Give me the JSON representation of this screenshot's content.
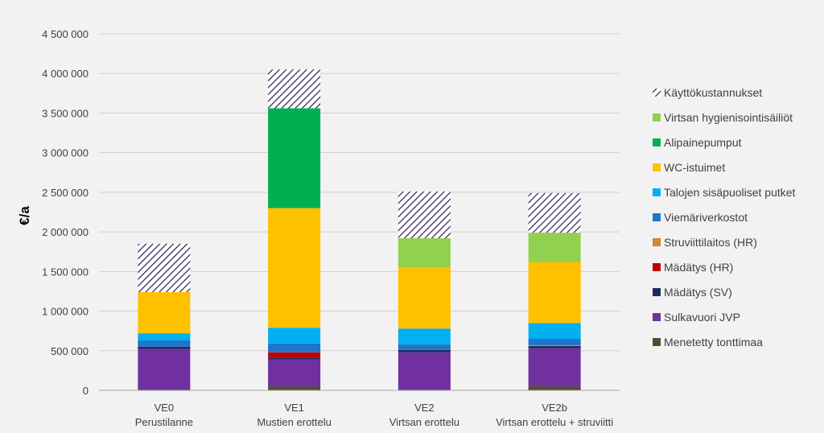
{
  "chart_data": {
    "type": "bar",
    "stacked": true,
    "title": "",
    "xlabel": "",
    "ylabel": "€/a",
    "ylim": [
      0,
      4500000
    ],
    "ytick_step": 500000,
    "ytick_labels": [
      "0",
      "500 000",
      "1 000 000",
      "1 500 000",
      "2 000 000",
      "2 500 000",
      "3 000 000",
      "3 500 000",
      "4 000 000",
      "4 500 000"
    ],
    "grid": true,
    "legend_position": "right",
    "categories": [
      {
        "code": "VE0",
        "desc": "Perustilanne"
      },
      {
        "code": "VE1",
        "desc": "Mustien erottelu"
      },
      {
        "code": "VE2",
        "desc": "Virtsan erottelu"
      },
      {
        "code": "VE2b",
        "desc": "Virtsan erottelu + struviitti"
      }
    ],
    "series": [
      {
        "name": "Menetetty tonttimaa",
        "color": "#4f4f2f",
        "values": [
          0,
          50000,
          0,
          50000
        ]
      },
      {
        "name": "Sulkavuori JVP",
        "color": "#7030a0",
        "values": [
          520000,
          340000,
          480000,
          480000
        ]
      },
      {
        "name": "Mädätys (SV)",
        "color": "#1f2a5e",
        "values": [
          30000,
          20000,
          30000,
          30000
        ]
      },
      {
        "name": "Mädätys (HR)",
        "color": "#c00000",
        "values": [
          0,
          70000,
          0,
          0
        ]
      },
      {
        "name": "Struviittilaitos (HR)",
        "color": "#d0843a",
        "values": [
          0,
          0,
          0,
          10000
        ]
      },
      {
        "name": "Viemäriverkostot",
        "color": "#1f75c9",
        "values": [
          80000,
          110000,
          70000,
          80000
        ]
      },
      {
        "name": "Talojen sisäpuoliset putket",
        "color": "#00b0f0",
        "values": [
          90000,
          200000,
          200000,
          200000
        ]
      },
      {
        "name": "WC-istuimet",
        "color": "#ffc000",
        "values": [
          520000,
          1510000,
          770000,
          770000
        ]
      },
      {
        "name": "Alipainepumput",
        "color": "#00b050",
        "values": [
          0,
          1260000,
          0,
          0
        ]
      },
      {
        "name": "Virtsan hygienisointisäiliöt",
        "color": "#92d050",
        "values": [
          0,
          0,
          370000,
          370000
        ]
      },
      {
        "name": "Käyttökustannukset",
        "color": "#3c2a5e",
        "pattern": "hatch",
        "values": [
          610000,
          490000,
          590000,
          500000
        ]
      }
    ]
  }
}
